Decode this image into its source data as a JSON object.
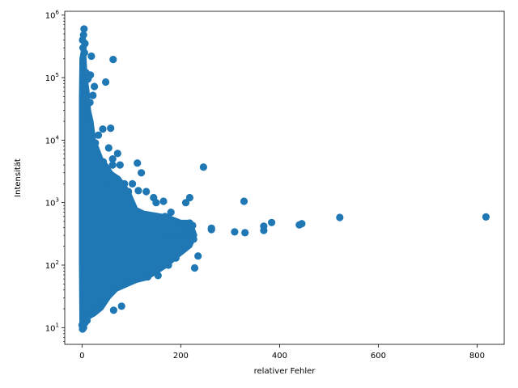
{
  "chart_data": {
    "type": "scatter",
    "xlabel": "relativer Fehler",
    "ylabel": "Intensität",
    "xlim": [
      -35,
      855
    ],
    "ylim": [
      5.4,
      1150000
    ],
    "yscale": "log",
    "grid": false,
    "marker_color": "#1f77b4",
    "x_ticks": [
      {
        "value": 0,
        "label": "0"
      },
      {
        "value": 200,
        "label": "200"
      },
      {
        "value": 400,
        "label": "400"
      },
      {
        "value": 600,
        "label": "600"
      },
      {
        "value": 800,
        "label": "800"
      }
    ],
    "y_ticks": [
      {
        "value": 10,
        "base": "10",
        "exp": "1"
      },
      {
        "value": 100,
        "base": "10",
        "exp": "2"
      },
      {
        "value": 1000,
        "base": "10",
        "exp": "3"
      },
      {
        "value": 10000,
        "base": "10",
        "exp": "4"
      },
      {
        "value": 100000,
        "base": "10",
        "exp": "5"
      },
      {
        "value": 1000000,
        "base": "10",
        "exp": "6"
      }
    ],
    "cluster_envelope": [
      [
        -2,
        9.5
      ],
      [
        0,
        9.5
      ],
      [
        2,
        9.5
      ],
      [
        5,
        10
      ],
      [
        9,
        12
      ],
      [
        13,
        14
      ],
      [
        18,
        15
      ],
      [
        25,
        16
      ],
      [
        40,
        20
      ],
      [
        55,
        30
      ],
      [
        70,
        40
      ],
      [
        85,
        45
      ],
      [
        110,
        55
      ],
      [
        130,
        60
      ],
      [
        150,
        75
      ],
      [
        170,
        95
      ],
      [
        200,
        150
      ],
      [
        220,
        200
      ],
      [
        230,
        300
      ],
      [
        220,
        500
      ],
      [
        200,
        500
      ],
      [
        175,
        600
      ],
      [
        150,
        650
      ],
      [
        125,
        700
      ],
      [
        110,
        800
      ],
      [
        95,
        1500
      ],
      [
        75,
        2500
      ],
      [
        60,
        3000
      ],
      [
        50,
        4000
      ],
      [
        40,
        5000
      ],
      [
        30,
        8000
      ],
      [
        25,
        10000
      ],
      [
        20,
        20000
      ],
      [
        15,
        30000
      ],
      [
        12,
        60000
      ],
      [
        8,
        100000
      ],
      [
        6,
        200000
      ],
      [
        4,
        300000
      ],
      [
        2,
        300000
      ],
      [
        0,
        250000
      ],
      [
        -2,
        200000
      ],
      [
        -3,
        50000
      ],
      [
        -3,
        10000
      ],
      [
        -3,
        100
      ]
    ],
    "points": [
      [
        4,
        600000
      ],
      [
        3,
        480000
      ],
      [
        1,
        400000
      ],
      [
        6,
        350000
      ],
      [
        2,
        300000
      ],
      [
        5,
        250000
      ],
      [
        63,
        195000
      ],
      [
        19,
        220000
      ],
      [
        17,
        110000
      ],
      [
        8,
        120000
      ],
      [
        12,
        95000
      ],
      [
        25,
        72000
      ],
      [
        48,
        85000
      ],
      [
        22,
        52000
      ],
      [
        16,
        40000
      ],
      [
        12,
        25000
      ],
      [
        42,
        15000
      ],
      [
        58,
        15500
      ],
      [
        33,
        12000
      ],
      [
        27,
        9000
      ],
      [
        54,
        7500
      ],
      [
        72,
        6100
      ],
      [
        62,
        5000
      ],
      [
        43,
        4500
      ],
      [
        62,
        4000
      ],
      [
        77,
        4000
      ],
      [
        112,
        4300
      ],
      [
        120,
        3000
      ],
      [
        246,
        3700
      ],
      [
        44,
        2700
      ],
      [
        86,
        2000
      ],
      [
        102,
        2000
      ],
      [
        94,
        1500
      ],
      [
        114,
        1550
      ],
      [
        130,
        1500
      ],
      [
        145,
        1200
      ],
      [
        150,
        1000
      ],
      [
        165,
        1050
      ],
      [
        180,
        700
      ],
      [
        210,
        1000
      ],
      [
        218,
        1200
      ],
      [
        168,
        600
      ],
      [
        190,
        480
      ],
      [
        218,
        470
      ],
      [
        224,
        430
      ],
      [
        262,
        390
      ],
      [
        262,
        370
      ],
      [
        309,
        340
      ],
      [
        328,
        1050
      ],
      [
        330,
        330
      ],
      [
        368,
        360
      ],
      [
        368,
        420
      ],
      [
        384,
        480
      ],
      [
        440,
        440
      ],
      [
        445,
        460
      ],
      [
        522,
        580
      ],
      [
        818,
        590
      ],
      [
        172,
        320
      ],
      [
        199,
        280
      ],
      [
        180,
        250
      ],
      [
        226,
        260
      ],
      [
        210,
        330
      ],
      [
        235,
        140
      ],
      [
        228,
        90
      ],
      [
        190,
        130
      ],
      [
        170,
        120
      ],
      [
        175,
        100
      ],
      [
        150,
        110
      ],
      [
        140,
        90
      ],
      [
        133,
        65
      ],
      [
        154,
        68
      ],
      [
        80,
        22
      ],
      [
        64,
        19
      ],
      [
        75,
        48
      ],
      [
        60,
        40
      ],
      [
        45,
        28
      ],
      [
        30,
        22
      ],
      [
        22,
        18
      ],
      [
        15,
        16
      ],
      [
        10,
        13
      ],
      [
        6,
        12
      ],
      [
        3,
        10
      ],
      [
        1,
        9.5
      ],
      [
        0,
        11
      ],
      [
        8,
        14
      ],
      [
        12,
        20
      ],
      [
        20,
        25
      ],
      [
        35,
        30
      ],
      [
        50,
        35
      ],
      [
        90,
        60
      ],
      [
        100,
        80
      ],
      [
        120,
        70
      ],
      [
        140,
        150
      ],
      [
        160,
        200
      ],
      [
        180,
        300
      ],
      [
        195,
        350
      ],
      [
        205,
        400
      ],
      [
        120,
        500
      ],
      [
        100,
        600
      ],
      [
        85,
        900
      ],
      [
        70,
        1200
      ],
      [
        58,
        1800
      ],
      [
        45,
        2200
      ],
      [
        35,
        3000
      ],
      [
        28,
        5000
      ],
      [
        22,
        7000
      ],
      [
        18,
        12000
      ],
      [
        14,
        18000
      ],
      [
        10,
        30000
      ],
      [
        8,
        50000
      ],
      [
        6,
        80000
      ]
    ]
  }
}
